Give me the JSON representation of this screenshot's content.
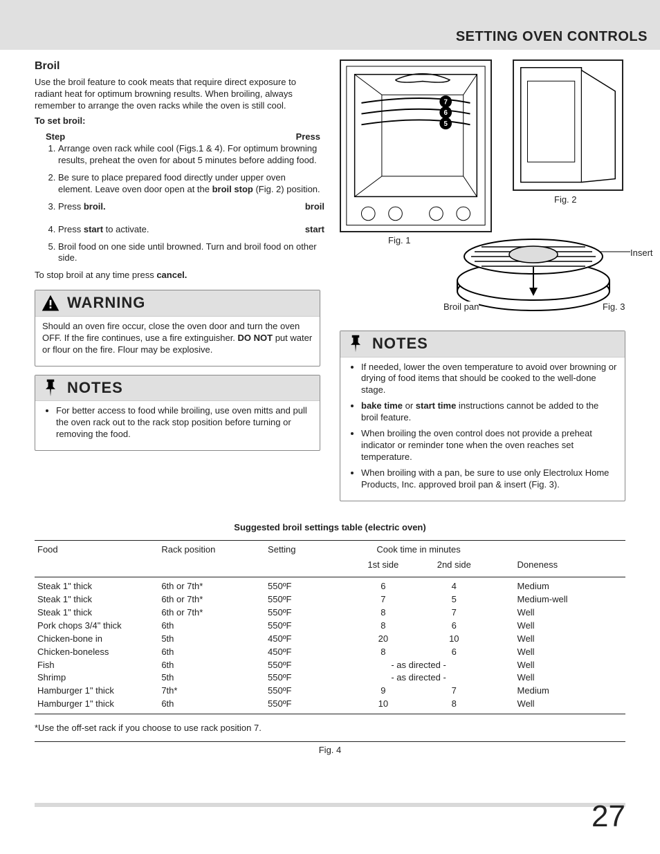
{
  "header": "SETTING OVEN CONTROLS",
  "section_title": "Broil",
  "intro": "Use the broil feature to cook meats that require direct exposure to radiant heat for optimum browning results. When broiling, always remember to arrange the oven racks while the oven is still cool.",
  "to_set_label": "To set broil:",
  "step_label": "Step",
  "press_label": "Press",
  "steps": {
    "s1": "Arrange oven rack while cool (Figs.1 & 4). For optimum browning results, preheat the oven for about 5 minutes before adding food.",
    "s2a": "Be sure to place prepared food directly under upper oven element. Leave oven door open at the ",
    "s2b": "broil stop",
    "s2c": " (Fig. 2) position.",
    "s3a": "Press ",
    "s3b": "broil.",
    "s3_press": "broil",
    "s4a": "Press ",
    "s4b": "start",
    "s4c": " to activate.",
    "s4_press": "start",
    "s5": "Broil food on one side until browned. Turn and broil food on other side."
  },
  "stop_a": "To stop broil at any time press ",
  "stop_b": "cancel.",
  "warning": {
    "title": "WARNING",
    "body_a": "Should an oven fire occur, close the oven door and turn the oven OFF. If the fire continues, use a fire extinguisher. ",
    "body_b": "DO NOT",
    "body_c": " put water or flour on the fire. Flour may be explosive."
  },
  "notes_left": {
    "title": "NOTES",
    "item1": "For better access to food while broiling, use oven mitts and pull the oven rack out to the rack stop position before turning or removing the food."
  },
  "notes_right": {
    "title": "NOTES",
    "item1": "If needed, lower the oven temperature to avoid over browning or drying of food items that should be cooked to the well-done stage.",
    "item2a": "bake time",
    "item2b": " or ",
    "item2c": "start time",
    "item2d": " instructions cannot be added to the broil feature.",
    "item3": "When broiling the oven control does not provide a preheat indicator or reminder tone when the oven reaches set temperature.",
    "item4": "When broiling with a pan, be sure to use only Electrolux Home Products, Inc. approved broil pan & insert (Fig. 3)."
  },
  "figs": {
    "fig1": "Fig. 1",
    "fig2": "Fig. 2",
    "fig3": "Fig. 3",
    "fig4": "Fig. 4",
    "insert": "Insert",
    "broilpan": "Broil pan",
    "r5": "5",
    "r6": "6",
    "r7": "7"
  },
  "table": {
    "title": "Suggested broil settings table (electric oven)",
    "head": {
      "food": "Food",
      "rack": "Rack position",
      "setting": "Setting",
      "cook": "Cook time in minutes",
      "side1": "1st side",
      "side2": "2nd side",
      "doneness": "Doneness"
    },
    "rows": [
      {
        "food": "Steak 1\" thick",
        "rack": "6th or 7th*",
        "setting": "550ºF",
        "s1": "6",
        "s2": "4",
        "don": "Medium"
      },
      {
        "food": "Steak 1\" thick",
        "rack": "6th or 7th*",
        "setting": "550ºF",
        "s1": "7",
        "s2": "5",
        "don": "Medium-well"
      },
      {
        "food": "Steak 1\" thick",
        "rack": "6th or 7th*",
        "setting": "550ºF",
        "s1": "8",
        "s2": "7",
        "don": "Well"
      },
      {
        "food": "Pork chops 3/4\" thick",
        "rack": "6th",
        "setting": "550ºF",
        "s1": "8",
        "s2": "6",
        "don": "Well"
      },
      {
        "food": "Chicken-bone in",
        "rack": "5th",
        "setting": "450ºF",
        "s1": "20",
        "s2": "10",
        "don": "Well"
      },
      {
        "food": "Chicken-boneless",
        "rack": "6th",
        "setting": "450ºF",
        "s1": "8",
        "s2": "6",
        "don": "Well"
      },
      {
        "food": "Fish",
        "rack": "6th",
        "setting": "550ºF",
        "s1": "- as directed -",
        "s2": "",
        "don": "Well",
        "merge": true
      },
      {
        "food": "Shrimp",
        "rack": "5th",
        "setting": "550ºF",
        "s1": "- as directed -",
        "s2": "",
        "don": "Well",
        "merge": true
      },
      {
        "food": "Hamburger 1\" thick",
        "rack": "7th*",
        "setting": "550ºF",
        "s1": "9",
        "s2": "7",
        "don": "Medium"
      },
      {
        "food": "Hamburger 1\" thick",
        "rack": "6th",
        "setting": "550ºF",
        "s1": "10",
        "s2": "8",
        "don": "Well"
      }
    ],
    "footnote": "*Use the off-set rack if you choose to use rack position 7."
  },
  "page_number": "27",
  "colors": {
    "header_bg": "#e0e0e0",
    "border": "#888888",
    "text": "#222222"
  }
}
